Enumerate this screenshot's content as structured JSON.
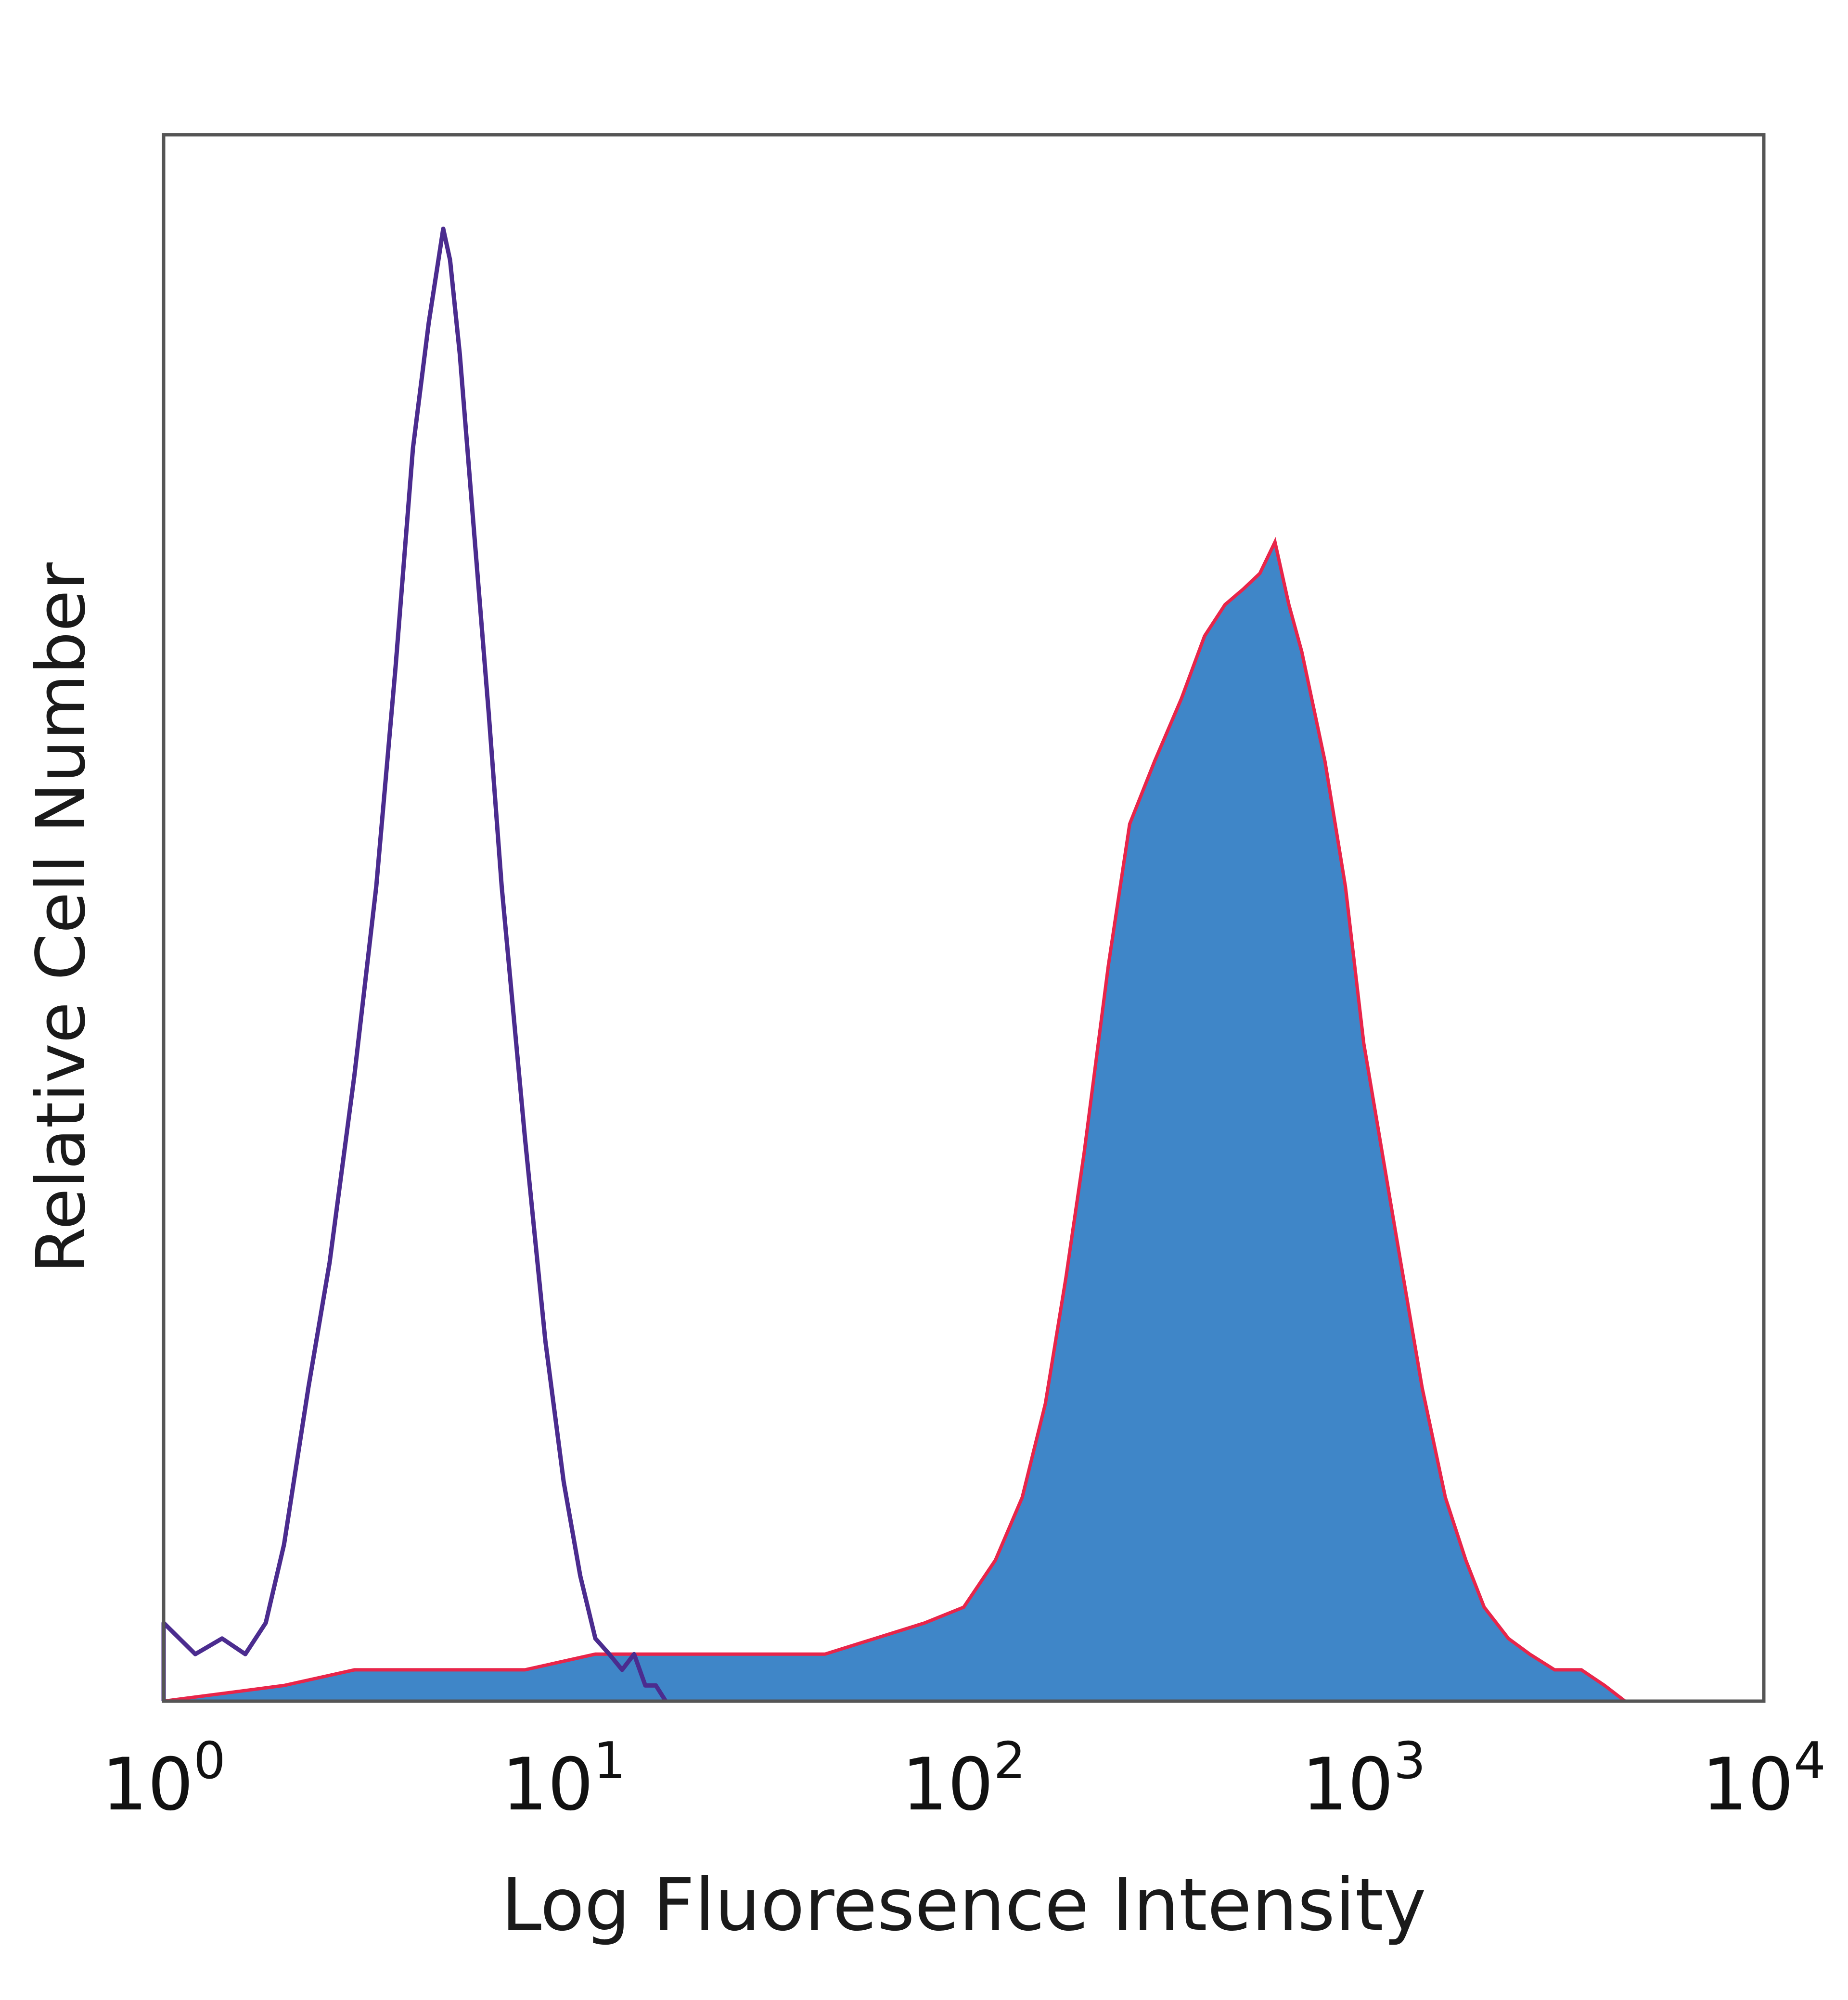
{
  "chart_data": {
    "type": "area",
    "title": "",
    "xlabel": "Log Fluoresence Intensity",
    "ylabel": "Relative Cell Number",
    "x_scale": "log",
    "xlim": [
      1,
      10000
    ],
    "ylim": [
      0,
      1
    ],
    "grid": false,
    "legend": "none",
    "x_ticks": [
      {
        "value": 1,
        "base": "10",
        "exp": "0"
      },
      {
        "value": 10,
        "base": "10",
        "exp": "1"
      },
      {
        "value": 100,
        "base": "10",
        "exp": "2"
      },
      {
        "value": 1000,
        "base": "10",
        "exp": "3"
      },
      {
        "value": 10000,
        "base": "10",
        "exp": "4"
      }
    ],
    "series": [
      {
        "style": "outline",
        "color": "#4b2c8f",
        "x": [
          1.0,
          1.2,
          1.4,
          1.6,
          1.8,
          2.0,
          2.3,
          2.6,
          3.0,
          3.4,
          3.8,
          4.2,
          4.6,
          5.0,
          5.2,
          5.5,
          6.0,
          6.5,
          7.0,
          8.0,
          9.0,
          10.0,
          11.0,
          12.0,
          13.0,
          14.0,
          15.0,
          16.0,
          17.0,
          18.0
        ],
        "values": [
          0.05,
          0.03,
          0.04,
          0.03,
          0.05,
          0.1,
          0.2,
          0.28,
          0.4,
          0.52,
          0.66,
          0.8,
          0.88,
          0.94,
          0.92,
          0.86,
          0.74,
          0.63,
          0.52,
          0.36,
          0.23,
          0.14,
          0.08,
          0.04,
          0.03,
          0.02,
          0.03,
          0.01,
          0.01,
          0.0
        ]
      },
      {
        "style": "filled",
        "color": "#3f86c8",
        "edge_color": "#e8254a",
        "x": [
          1.0,
          2.0,
          3.0,
          5.0,
          8.0,
          12.0,
          20.0,
          30.0,
          45.0,
          60.0,
          80.0,
          100.0,
          120.0,
          140.0,
          160.0,
          180.0,
          200.0,
          230.0,
          260.0,
          300.0,
          350.0,
          400.0,
          450.0,
          500.0,
          550.0,
          600.0,
          650.0,
          700.0,
          800.0,
          900.0,
          1000.0,
          1200.0,
          1400.0,
          1600.0,
          1800.0,
          2000.0,
          2300.0,
          2600.0,
          3000.0,
          3500.0,
          4000.0,
          4500.0
        ],
        "values": [
          0.0,
          0.01,
          0.02,
          0.02,
          0.02,
          0.03,
          0.03,
          0.03,
          0.03,
          0.04,
          0.05,
          0.06,
          0.09,
          0.13,
          0.19,
          0.27,
          0.35,
          0.47,
          0.56,
          0.6,
          0.64,
          0.68,
          0.7,
          0.71,
          0.72,
          0.74,
          0.7,
          0.67,
          0.6,
          0.52,
          0.42,
          0.3,
          0.2,
          0.13,
          0.09,
          0.06,
          0.04,
          0.03,
          0.02,
          0.02,
          0.01,
          0.0
        ]
      }
    ]
  }
}
